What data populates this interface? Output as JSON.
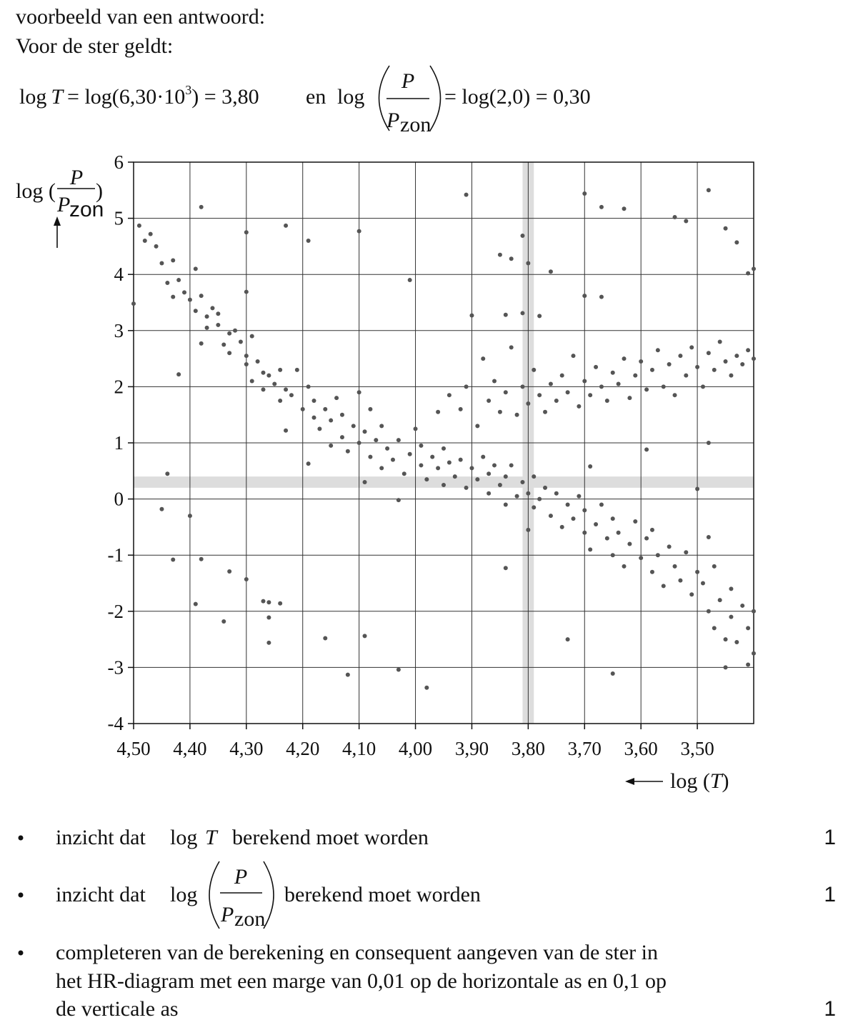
{
  "intro": [
    "voorbeeld van een antwoord:",
    "Voor de ster geldt:"
  ],
  "formula": {
    "log_t": "log",
    "t": "T",
    "calc_t": "= log(6,30·10",
    "exp": "3",
    "result_t": ") = 3,80",
    "conj": "en",
    "log_p": "log",
    "p": "P",
    "p_zon": "P",
    "zon": "zon",
    "result_p": "= log(2,0) = 0,30"
  },
  "chart_data": {
    "type": "scatter",
    "color": "#555555",
    "grid": true,
    "y_label": {
      "prefix": "log (",
      "num": "P",
      "den": "P",
      "sub": "zon",
      "suffix": ")"
    },
    "x_label": {
      "prefix": "log (",
      "var": "T",
      "suffix": ")"
    },
    "xlim": [
      4.5,
      3.4
    ],
    "ylim": [
      -4,
      6
    ],
    "xticks": [
      {
        "value": 4.5,
        "label": "4,50"
      },
      {
        "value": 4.4,
        "label": "4,40"
      },
      {
        "value": 4.3,
        "label": "4,30"
      },
      {
        "value": 4.2,
        "label": "4,20"
      },
      {
        "value": 4.1,
        "label": "4,10"
      },
      {
        "value": 4.0,
        "label": "4,00"
      },
      {
        "value": 3.9,
        "label": "3,90"
      },
      {
        "value": 3.8,
        "label": "3,80"
      },
      {
        "value": 3.7,
        "label": "3,70"
      },
      {
        "value": 3.6,
        "label": "3,60"
      },
      {
        "value": 3.5,
        "label": "3,50"
      }
    ],
    "yticks": [
      -4,
      -3,
      -2,
      -1,
      0,
      1,
      2,
      3,
      4,
      5,
      6
    ],
    "highlight": {
      "x": [
        3.79,
        3.81
      ],
      "y": [
        0.2,
        0.4
      ],
      "color": "#dddddd"
    },
    "x": [
      4.5,
      4.49,
      4.38,
      4.3,
      4.23,
      4.19,
      4.1,
      3.91,
      3.7,
      3.67,
      3.63,
      3.48,
      3.54,
      3.52,
      3.45,
      3.43,
      3.41,
      3.4,
      3.81,
      3.8,
      3.76,
      3.85,
      3.83,
      4.01,
      3.7,
      3.67,
      3.9,
      3.84,
      3.81,
      3.78,
      4.3,
      4.42,
      4.38,
      4.44,
      4.45,
      4.4,
      4.43,
      4.38,
      4.39,
      4.34,
      4.33,
      4.3,
      4.27,
      4.26,
      4.26,
      4.24,
      4.26,
      4.16,
      4.12,
      4.09,
      4.03,
      3.98,
      3.84,
      3.73,
      3.65,
      3.45,
      3.41,
      4.19,
      3.59,
      3.48,
      3.5,
      3.48,
      3.8,
      3.69,
      4.48,
      4.47,
      4.46,
      4.45,
      4.44,
      4.43,
      4.43,
      4.42,
      4.41,
      4.4,
      4.39,
      4.39,
      4.38,
      4.37,
      4.37,
      4.36,
      4.35,
      4.35,
      4.34,
      4.33,
      4.33,
      4.32,
      4.31,
      4.3,
      4.3,
      4.29,
      4.29,
      4.28,
      4.27,
      4.27,
      4.26,
      4.25,
      4.24,
      4.24,
      4.23,
      4.23,
      4.22,
      4.21,
      4.2,
      4.19,
      4.18,
      4.18,
      4.17,
      4.16,
      4.15,
      4.15,
      4.14,
      4.13,
      4.13,
      4.12,
      4.11,
      4.1,
      4.1,
      4.09,
      4.09,
      4.08,
      4.08,
      4.07,
      4.06,
      4.06,
      4.05,
      4.04,
      4.03,
      4.03,
      4.02,
      4.01,
      4.0,
      3.99,
      3.99,
      3.98,
      3.97,
      3.96,
      3.95,
      3.95,
      3.94,
      3.93,
      3.92,
      3.91,
      3.9,
      3.89,
      3.88,
      3.87,
      3.87,
      3.86,
      3.85,
      3.84,
      3.84,
      3.83,
      3.82,
      3.81,
      3.8,
      3.79,
      3.79,
      3.78,
      3.77,
      3.76,
      3.75,
      3.74,
      3.73,
      3.72,
      3.71,
      3.7,
      3.7,
      3.69,
      3.68,
      3.67,
      3.66,
      3.65,
      3.65,
      3.64,
      3.63,
      3.62,
      3.61,
      3.6,
      3.59,
      3.58,
      3.58,
      3.57,
      3.56,
      3.55,
      3.54,
      3.53,
      3.52,
      3.51,
      3.5,
      3.49,
      3.48,
      3.47,
      3.47,
      3.46,
      3.45,
      3.44,
      3.44,
      3.43,
      3.42,
      3.41,
      3.4,
      3.4,
      3.96,
      3.94,
      3.92,
      3.91,
      3.89,
      3.88,
      3.87,
      3.86,
      3.85,
      3.84,
      3.83,
      3.82,
      3.81,
      3.8,
      3.79,
      3.78,
      3.77,
      3.76,
      3.75,
      3.74,
      3.73,
      3.72,
      3.71,
      3.7,
      3.69,
      3.68,
      3.67,
      3.66,
      3.65,
      3.64,
      3.63,
      3.62,
      3.61,
      3.6,
      3.59,
      3.58,
      3.57,
      3.56,
      3.55,
      3.54,
      3.53,
      3.52,
      3.51,
      3.5,
      3.49,
      3.48,
      3.47,
      3.46,
      3.45,
      3.44,
      3.43,
      3.42,
      3.41,
      3.4
    ],
    "values": [
      3.48,
      4.87,
      5.2,
      4.75,
      4.87,
      4.6,
      4.77,
      5.42,
      5.44,
      5.2,
      5.17,
      5.5,
      5.02,
      4.95,
      4.82,
      4.57,
      4.02,
      4.1,
      4.69,
      4.2,
      4.05,
      4.35,
      4.28,
      3.9,
      3.62,
      3.6,
      3.27,
      3.28,
      3.31,
      3.26,
      3.69,
      2.22,
      2.77,
      0.45,
      -0.18,
      -0.3,
      -1.08,
      -1.07,
      -1.87,
      -2.18,
      -1.29,
      -1.43,
      -1.82,
      -1.84,
      -2.11,
      -1.86,
      -2.56,
      -2.48,
      -3.13,
      -2.44,
      -3.04,
      -3.36,
      -1.23,
      -2.5,
      -3.11,
      -3.0,
      -2.95,
      0.63,
      0.88,
      1.0,
      0.18,
      -0.68,
      -0.55,
      0.58,
      4.6,
      4.72,
      4.5,
      4.2,
      3.85,
      4.25,
      3.6,
      3.9,
      3.68,
      3.55,
      3.35,
      4.1,
      3.62,
      3.25,
      3.05,
      3.4,
      3.1,
      3.3,
      2.75,
      2.95,
      2.6,
      3.0,
      2.8,
      2.4,
      2.55,
      2.9,
      2.1,
      2.45,
      2.25,
      1.95,
      2.2,
      2.05,
      2.3,
      1.75,
      1.95,
      1.22,
      1.85,
      2.3,
      1.6,
      2.0,
      1.45,
      1.75,
      1.25,
      1.6,
      0.95,
      1.4,
      1.8,
      1.1,
      1.5,
      0.85,
      1.3,
      1.0,
      1.9,
      0.3,
      1.2,
      0.75,
      1.6,
      1.05,
      0.55,
      1.3,
      0.9,
      0.7,
      -0.02,
      1.05,
      0.45,
      0.8,
      1.25,
      0.6,
      0.95,
      0.35,
      0.75,
      0.55,
      0.25,
      0.9,
      0.65,
      0.4,
      0.7,
      0.2,
      0.55,
      0.35,
      0.75,
      0.1,
      0.45,
      0.6,
      0.25,
      -0.1,
      0.4,
      0.6,
      0.05,
      0.3,
      0.1,
      -0.15,
      0.4,
      0.0,
      0.2,
      -0.3,
      0.1,
      -0.5,
      -0.1,
      -0.35,
      0.05,
      -0.6,
      -0.2,
      -0.9,
      -0.45,
      -0.1,
      -0.7,
      -1.0,
      -0.35,
      -0.6,
      -1.2,
      -0.8,
      -0.4,
      -1.05,
      -0.7,
      -1.3,
      -0.55,
      -1.0,
      -1.55,
      -0.85,
      -1.2,
      -1.45,
      -0.95,
      -1.7,
      -1.3,
      -1.5,
      -2.0,
      -1.2,
      -2.3,
      -1.8,
      -2.5,
      -1.6,
      -2.1,
      -2.55,
      -1.9,
      -2.3,
      -2.75,
      -2.0,
      1.55,
      1.85,
      1.6,
      2.0,
      1.3,
      2.5,
      1.75,
      2.1,
      1.55,
      1.9,
      2.7,
      1.5,
      2.0,
      1.7,
      2.3,
      1.85,
      1.55,
      2.05,
      1.75,
      2.2,
      1.9,
      2.55,
      1.65,
      2.1,
      1.85,
      2.35,
      2.0,
      1.75,
      2.25,
      2.05,
      2.5,
      1.8,
      2.2,
      2.45,
      1.95,
      2.3,
      2.65,
      2.0,
      2.4,
      1.85,
      2.55,
      2.2,
      2.7,
      2.35,
      2.0,
      2.6,
      2.3,
      2.8,
      2.45,
      2.2,
      2.55,
      2.4,
      2.65,
      2.5
    ]
  },
  "criteria": [
    {
      "text": "inzicht dat",
      "log": "log",
      "var": "T",
      "rest": "berekend moet worden",
      "score": 1
    },
    {
      "text": "inzicht dat",
      "log": "log",
      "num": "P",
      "den": "P",
      "sub": "zon",
      "rest": "berekend moet worden",
      "score": 1
    },
    {
      "lines": [
        "completeren van de berekening en consequent aangeven van de ster in",
        "het HR-diagram met een marge van 0,01 op de horizontale as en 0,1 op",
        "de verticale as"
      ],
      "score": 1
    }
  ]
}
